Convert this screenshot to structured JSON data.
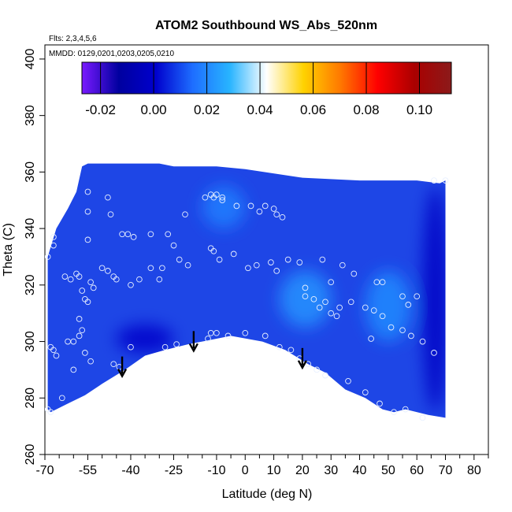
{
  "chart_data": {
    "type": "heatmap",
    "title": "ATOM2 Southbound WS_Abs_520nm",
    "annotations": {
      "flights": "Flts: 2,3,4,5,6",
      "dates": "MMDD: 0129,0201,0203,0205,0210"
    },
    "xlabel": "Latitude (deg N)",
    "ylabel": "Theta (C)",
    "xlim": [
      -70,
      85
    ],
    "ylim": [
      260,
      405
    ],
    "x_ticks": [
      -70,
      -55,
      -40,
      -25,
      -10,
      0,
      10,
      20,
      30,
      40,
      50,
      60,
      70,
      80
    ],
    "x_minor_ticks": [
      -65,
      -60,
      -50,
      -45,
      -35,
      -30,
      -20,
      -15,
      -5,
      5,
      15,
      25,
      35,
      45,
      55,
      65,
      75,
      85
    ],
    "y_ticks": [
      260,
      280,
      300,
      320,
      340,
      360,
      380,
      400
    ],
    "colorbar": {
      "min": -0.027,
      "max": 0.112,
      "ticks": [
        -0.02,
        0.0,
        0.02,
        0.04,
        0.06,
        0.08,
        0.1
      ],
      "tick_labels": [
        "-0.02",
        "0.00",
        "0.02",
        "0.04",
        "0.06",
        "0.08",
        "0.10"
      ],
      "colors": [
        "#7a1aff",
        "#00009f",
        "#0000cd",
        "#1e6eff",
        "#28b4ff",
        "#ffffff",
        "#ffd200",
        "#ff7800",
        "#ff0000",
        "#aa0000",
        "#8b1a1a"
      ]
    },
    "field_color": "#1e46e6",
    "field_boundary": {
      "top": [
        [
          -69,
          330
        ],
        [
          -66,
          340
        ],
        [
          -62,
          347
        ],
        [
          -59,
          353
        ],
        [
          -57,
          362
        ],
        [
          -55,
          363
        ],
        [
          -50,
          363
        ],
        [
          -30,
          363
        ],
        [
          -25,
          362
        ],
        [
          -10,
          362
        ],
        [
          0,
          361
        ],
        [
          20,
          358
        ],
        [
          40,
          357
        ],
        [
          60,
          357
        ],
        [
          68,
          356
        ],
        [
          70,
          357
        ]
      ],
      "bottom": [
        [
          70,
          273
        ],
        [
          64,
          274
        ],
        [
          56,
          276
        ],
        [
          52,
          275
        ],
        [
          48,
          276
        ],
        [
          45,
          278
        ],
        [
          42,
          280
        ],
        [
          35,
          283
        ],
        [
          28,
          289
        ],
        [
          22,
          292
        ],
        [
          14,
          297
        ],
        [
          6,
          300
        ],
        [
          -5,
          302
        ],
        [
          -10,
          301
        ],
        [
          -20,
          299
        ],
        [
          -28,
          297
        ],
        [
          -35,
          295
        ],
        [
          -42,
          290
        ],
        [
          -50,
          285
        ],
        [
          -56,
          281
        ],
        [
          -62,
          278
        ],
        [
          -68,
          275
        ],
        [
          -69,
          276
        ]
      ]
    },
    "patches": [
      {
        "name": "light-region-mid",
        "lat": [
          12,
          30
        ],
        "theta": [
          305,
          325
        ],
        "value": 0.022
      },
      {
        "name": "light-region-north",
        "lat": [
          42,
          58
        ],
        "theta": [
          300,
          325
        ],
        "value": 0.02
      },
      {
        "name": "light-region-upper",
        "lat": [
          -15,
          0
        ],
        "theta": [
          340,
          355
        ],
        "value": 0.018
      },
      {
        "name": "dark-region-south",
        "lat": [
          -45,
          -25
        ],
        "theta": [
          296,
          306
        ],
        "value": 0.0
      },
      {
        "name": "dark-region-east",
        "lat": [
          62,
          71
        ],
        "theta": [
          275,
          355
        ],
        "value": -0.002
      }
    ],
    "arrows": [
      {
        "lat": -43,
        "theta": 288
      },
      {
        "lat": -18,
        "theta": 297
      },
      {
        "lat": 20,
        "theta": 291
      }
    ],
    "points": [
      [
        -55,
        353
      ],
      [
        -48,
        351
      ],
      [
        -55,
        346
      ],
      [
        -47,
        345
      ],
      [
        -39,
        337
      ],
      [
        -43,
        338
      ],
      [
        -41,
        338
      ],
      [
        -33,
        338
      ],
      [
        -21,
        345
      ],
      [
        -25,
        334
      ],
      [
        -55,
        336
      ],
      [
        -27,
        338
      ],
      [
        -67,
        337
      ],
      [
        -67,
        334
      ],
      [
        -69,
        330
      ],
      [
        -58,
        323
      ],
      [
        -61,
        322
      ],
      [
        -63,
        323
      ],
      [
        -59,
        324
      ],
      [
        -54,
        321
      ],
      [
        -53,
        319
      ],
      [
        -57,
        318
      ],
      [
        -56,
        315
      ],
      [
        -55,
        314
      ],
      [
        -50,
        326
      ],
      [
        -48,
        325
      ],
      [
        -46,
        323
      ],
      [
        -45,
        322
      ],
      [
        -40,
        320
      ],
      [
        -37,
        322
      ],
      [
        -33,
        326
      ],
      [
        -30,
        322
      ],
      [
        -29,
        326
      ],
      [
        -23,
        329
      ],
      [
        -20,
        327
      ],
      [
        -62,
        300
      ],
      [
        -60,
        300
      ],
      [
        -58,
        308
      ],
      [
        -57,
        304
      ],
      [
        -58,
        302
      ],
      [
        -56,
        296
      ],
      [
        -60,
        290
      ],
      [
        -54,
        293
      ],
      [
        -46,
        292
      ],
      [
        -44,
        291
      ],
      [
        -40,
        298
      ],
      [
        -28,
        298
      ],
      [
        -24,
        299
      ],
      [
        -18,
        298
      ],
      [
        -13,
        301
      ],
      [
        -10,
        303
      ],
      [
        -12,
        303
      ],
      [
        -6,
        302
      ],
      [
        0,
        303
      ],
      [
        7,
        302
      ],
      [
        12,
        298
      ],
      [
        -8,
        351
      ],
      [
        -10,
        352
      ],
      [
        -12,
        352
      ],
      [
        -11,
        351
      ],
      [
        -14,
        351
      ],
      [
        -8,
        350
      ],
      [
        -3,
        348
      ],
      [
        2,
        348
      ],
      [
        5,
        346
      ],
      [
        7,
        348
      ],
      [
        10,
        347
      ],
      [
        11,
        345
      ],
      [
        13,
        344
      ],
      [
        -12,
        333
      ],
      [
        -11,
        332
      ],
      [
        -9,
        329
      ],
      [
        -4,
        331
      ],
      [
        1,
        326
      ],
      [
        4,
        327
      ],
      [
        9,
        328
      ],
      [
        11,
        325
      ],
      [
        15,
        329
      ],
      [
        19,
        328
      ],
      [
        21,
        319
      ],
      [
        21,
        316
      ],
      [
        24,
        315
      ],
      [
        26,
        312
      ],
      [
        28,
        314
      ],
      [
        30,
        310
      ],
      [
        33,
        312
      ],
      [
        37,
        314
      ],
      [
        42,
        312
      ],
      [
        45,
        311
      ],
      [
        48,
        309
      ],
      [
        51,
        305
      ],
      [
        55,
        304
      ],
      [
        58,
        302
      ],
      [
        62,
        300
      ],
      [
        66,
        296
      ],
      [
        55,
        316
      ],
      [
        57,
        313
      ],
      [
        60,
        316
      ],
      [
        48,
        321
      ],
      [
        38,
        324
      ],
      [
        34,
        327
      ],
      [
        27,
        329
      ],
      [
        30,
        321
      ],
      [
        46,
        321
      ],
      [
        44,
        301
      ],
      [
        32,
        309
      ],
      [
        16,
        297
      ],
      [
        19,
        294
      ],
      [
        22,
        292
      ],
      [
        25,
        290
      ],
      [
        28,
        288
      ],
      [
        36,
        286
      ],
      [
        42,
        282
      ],
      [
        47,
        278
      ],
      [
        52,
        275
      ],
      [
        56,
        276
      ],
      [
        62,
        273
      ],
      [
        66,
        357
      ],
      [
        70,
        357
      ],
      [
        -68,
        298
      ],
      [
        -67,
        297
      ],
      [
        -66,
        295
      ],
      [
        -64,
        280
      ],
      [
        -68,
        275
      ],
      [
        -69,
        276
      ]
    ]
  }
}
